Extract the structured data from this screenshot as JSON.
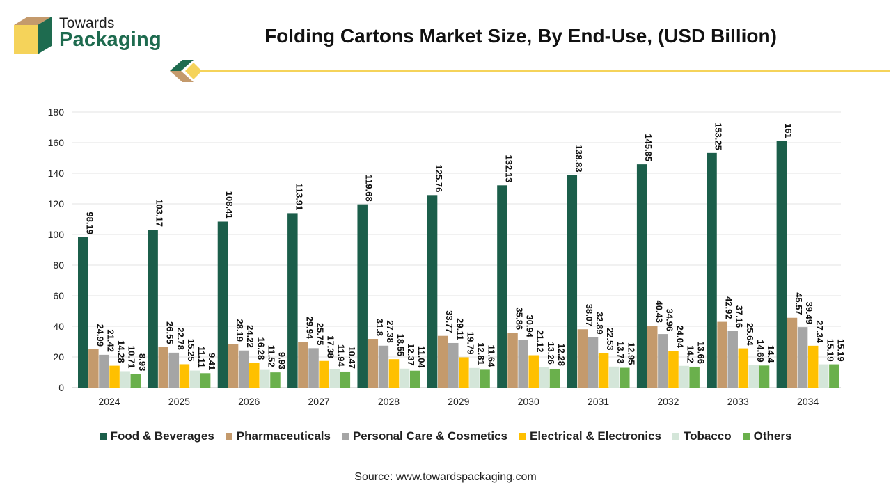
{
  "brand": {
    "line1": "Towards",
    "line2": "Packaging"
  },
  "title": "Folding Cartons Market Size, By End-Use, (USD Billion)",
  "source": "Source: www.towardspackaging.com",
  "colors": {
    "brand_green": "#1e6b4f",
    "accent_yellow": "#f5d35a",
    "logo_tan": "#c49a6c"
  },
  "chart_data": {
    "type": "bar",
    "categories": [
      "2024",
      "2025",
      "2026",
      "2027",
      "2028",
      "2029",
      "2030",
      "2031",
      "2032",
      "2033",
      "2034"
    ],
    "ylim": [
      0,
      180
    ],
    "yticks": [
      0,
      20,
      40,
      60,
      80,
      100,
      120,
      140,
      160,
      180
    ],
    "grid": true,
    "legend_position": "bottom",
    "series": [
      {
        "name": "Food & Beverages",
        "color": "#1b5e4a",
        "values": [
          98.19,
          103.17,
          108.41,
          113.91,
          119.68,
          125.76,
          132.13,
          138.83,
          145.85,
          153.25,
          161
        ]
      },
      {
        "name": "Pharmaceuticals",
        "color": "#c49a6c",
        "values": [
          24.99,
          26.55,
          28.19,
          29.94,
          31.8,
          33.77,
          35.86,
          38.07,
          40.43,
          42.92,
          45.57
        ]
      },
      {
        "name": "Personal Care & Cosmetics",
        "color": "#a5a5a5",
        "values": [
          21.42,
          22.78,
          24.22,
          25.75,
          27.38,
          29.11,
          30.94,
          32.89,
          34.96,
          37.16,
          39.49
        ]
      },
      {
        "name": "Electrical & Electronics",
        "color": "#ffc000",
        "values": [
          14.28,
          15.25,
          16.28,
          17.38,
          18.55,
          19.79,
          21.12,
          22.53,
          24.04,
          25.64,
          27.34
        ]
      },
      {
        "name": "Tobacco",
        "color": "#d4e6d9",
        "values": [
          10.71,
          11.11,
          11.52,
          11.94,
          12.37,
          12.81,
          13.26,
          13.73,
          14.2,
          14.69,
          15.19
        ]
      },
      {
        "name": "Others",
        "color": "#6ab04c",
        "values": [
          8.93,
          9.41,
          9.93,
          10.47,
          11.04,
          11.64,
          12.28,
          12.95,
          13.66,
          14.4,
          15.19
        ]
      }
    ]
  }
}
